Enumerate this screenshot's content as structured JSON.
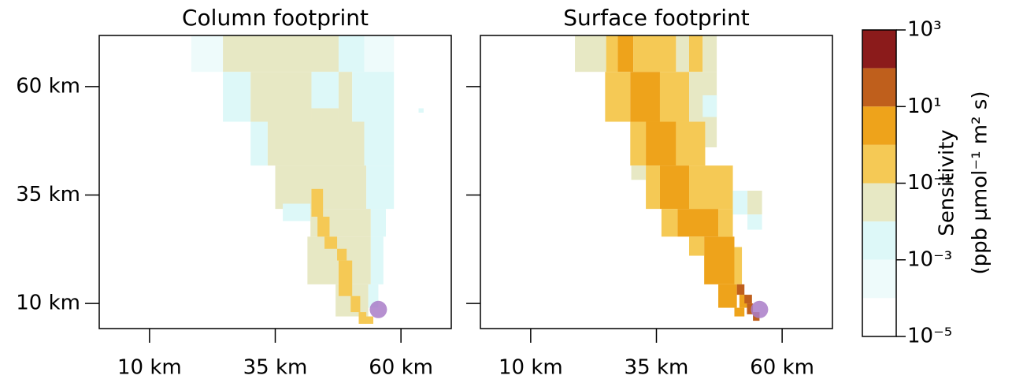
{
  "chart_data": {
    "type": "heatmap",
    "xlim": [
      0,
      70
    ],
    "ylim": [
      4.2,
      71.8
    ],
    "xticks": [
      {
        "value": 10,
        "label": "10 km"
      },
      {
        "value": 35,
        "label": "35 km"
      },
      {
        "value": 60,
        "label": "60 km"
      }
    ],
    "yticks": [
      {
        "value": 10,
        "label": "10 km"
      },
      {
        "value": 35,
        "label": "35 km"
      },
      {
        "value": 60,
        "label": "60 km"
      }
    ],
    "colorbar": {
      "title": "Sensitivity",
      "unit": "(ppb μmol⁻¹ m² s)",
      "log_scale": true,
      "lim": [
        1e-05,
        1000
      ],
      "colors": [
        "#ffffff",
        "#eefbfb",
        "#ddf8f8",
        "#e7e8c4",
        "#f5c955",
        "#eea31b",
        "#bf5f1c",
        "#8b1b1b"
      ],
      "ticks": [
        {
          "value": 1e-05,
          "label": "10⁻⁵"
        },
        {
          "value": 0.001,
          "label": "10⁻³"
        },
        {
          "value": 0.1,
          "label": "10⁻¹"
        },
        {
          "value": 10,
          "label": "10¹"
        },
        {
          "value": 1000,
          "label": "10³"
        }
      ]
    },
    "panels": [
      {
        "title": "Column footprint",
        "receptor": [
          55.5,
          8.6
        ],
        "receptor_color": "#a97cc8",
        "cells": [
          [
            18.3,
            24.6,
            63.4,
            71.8,
            0.0003
          ],
          [
            24.6,
            47.6,
            63.4,
            71.8,
            0.03
          ],
          [
            47.6,
            52.7,
            63.4,
            71.8,
            0.003
          ],
          [
            52.7,
            58.6,
            63.4,
            71.8,
            0.0003
          ],
          [
            24.6,
            30.1,
            51.9,
            63.4,
            0.003
          ],
          [
            30.1,
            42.2,
            51.9,
            63.4,
            0.03
          ],
          [
            42.2,
            47.6,
            55,
            63.4,
            0.003
          ],
          [
            42.2,
            47.6,
            51.9,
            55,
            0.03
          ],
          [
            47.6,
            50.3,
            51.9,
            63.4,
            0.03
          ],
          [
            50.3,
            58.6,
            51.9,
            63.4,
            0.003
          ],
          [
            30.1,
            33.5,
            41.8,
            51.9,
            0.003
          ],
          [
            33.5,
            52.7,
            41.8,
            51.9,
            0.03
          ],
          [
            52.7,
            58.6,
            41.8,
            51.9,
            0.003
          ],
          [
            35,
            53.1,
            31.8,
            41.8,
            0.03
          ],
          [
            53.1,
            58.6,
            31.8,
            41.8,
            0.003
          ],
          [
            36.5,
            42,
            29,
            33,
            0.003
          ],
          [
            42,
            54,
            25.4,
            31.8,
            0.03
          ],
          [
            54,
            57,
            25.4,
            31.8,
            0.003
          ],
          [
            41.4,
            54,
            14.4,
            25.4,
            0.03
          ],
          [
            54,
            56.5,
            14.4,
            25.4,
            0.003
          ],
          [
            47,
            53.5,
            7,
            14.4,
            0.03
          ],
          [
            53.5,
            55.5,
            9,
            14.4,
            0.003
          ],
          [
            52.5,
            54,
            5.6,
            7,
            0.03
          ],
          [
            42.2,
            44.5,
            30,
            36.4,
            0.3
          ],
          [
            43.4,
            45.8,
            25.4,
            30,
            0.3
          ],
          [
            44.8,
            47.3,
            22.6,
            25.4,
            0.3
          ],
          [
            47.3,
            49.2,
            19.9,
            22.6,
            0.3
          ],
          [
            47.6,
            50.3,
            11.7,
            19.9,
            0.3
          ],
          [
            50,
            51.9,
            8,
            11.7,
            0.3
          ],
          [
            51.6,
            53.1,
            5.3,
            8,
            0.3
          ],
          [
            53,
            54.5,
            5.3,
            7,
            0.3
          ],
          [
            63.5,
            64.5,
            54,
            55,
            0.003
          ]
        ]
      },
      {
        "title": "Surface footprint",
        "receptor": [
          55.5,
          8.6
        ],
        "receptor_color": "#a97cc8",
        "cells": [
          [
            18.8,
            25,
            63.4,
            71.8,
            0.03
          ],
          [
            25,
            27.3,
            63.4,
            71.8,
            0.3
          ],
          [
            27.3,
            30.4,
            63.4,
            71.8,
            3
          ],
          [
            30.4,
            38.9,
            63.4,
            71.8,
            0.3
          ],
          [
            38.9,
            41.5,
            63.4,
            71.8,
            0.03
          ],
          [
            41.5,
            44.2,
            63.4,
            71.8,
            0.3
          ],
          [
            44.2,
            47,
            63.4,
            71.8,
            0.03
          ],
          [
            24.8,
            29.8,
            51.9,
            63.4,
            0.3
          ],
          [
            29.8,
            35.7,
            51.9,
            63.4,
            3
          ],
          [
            35.7,
            41.5,
            51.9,
            63.4,
            0.3
          ],
          [
            41.5,
            47,
            51.9,
            63.4,
            0.03
          ],
          [
            44.2,
            47,
            53,
            58,
            0.003
          ],
          [
            29.8,
            32.9,
            41.8,
            51.9,
            0.3
          ],
          [
            32.9,
            38.9,
            41.8,
            51.9,
            3
          ],
          [
            38.9,
            44.7,
            41.8,
            51.9,
            0.3
          ],
          [
            44.7,
            47,
            46,
            51.9,
            0.03
          ],
          [
            30,
            32.9,
            38.5,
            41.8,
            0.03
          ],
          [
            32.9,
            35.7,
            31.8,
            41.8,
            0.3
          ],
          [
            35.7,
            41.5,
            31.8,
            41.8,
            3
          ],
          [
            41.5,
            50.2,
            31.8,
            41.8,
            0.3
          ],
          [
            50.2,
            53.1,
            30.5,
            36,
            0.003
          ],
          [
            53.1,
            56,
            30.5,
            36,
            0.03
          ],
          [
            53.1,
            56,
            27,
            30.5,
            0.003
          ],
          [
            36,
            39.2,
            25.4,
            31.8,
            0.3
          ],
          [
            39.2,
            47.3,
            25.4,
            31.8,
            3
          ],
          [
            47.3,
            50.2,
            25.4,
            31.8,
            0.3
          ],
          [
            41.5,
            44.5,
            21,
            25.4,
            0.3
          ],
          [
            44.5,
            50.5,
            14.4,
            25.4,
            3
          ],
          [
            50.5,
            52,
            14.4,
            23,
            0.3
          ],
          [
            47.3,
            51,
            9,
            14.4,
            3
          ],
          [
            50.5,
            52.5,
            7,
            9,
            3
          ],
          [
            51.5,
            53,
            9,
            12,
            3
          ],
          [
            51,
            52.5,
            12,
            14.4,
            30
          ],
          [
            52.5,
            54,
            10,
            12,
            30
          ],
          [
            53,
            54.2,
            7.5,
            10,
            30
          ],
          [
            54.2,
            55.5,
            6,
            8,
            30
          ]
        ]
      }
    ]
  }
}
